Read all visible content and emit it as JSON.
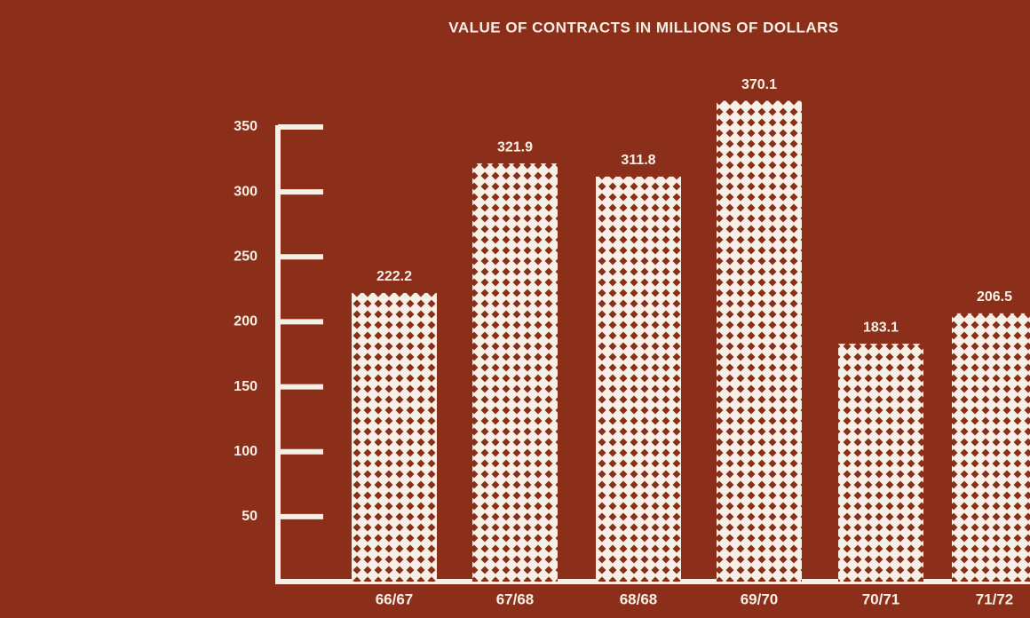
{
  "chart_data": {
    "type": "bar",
    "title": "VALUE OF CONTRACTS IN MILLIONS OF DOLLARS",
    "categories": [
      "66/67",
      "67/68",
      "68/68",
      "69/70",
      "70/71",
      "71/72"
    ],
    "values": [
      222.2,
      321.9,
      311.8,
      370.1,
      183.1,
      206.5
    ],
    "color": "#f6efe6",
    "ylim": [
      0,
      350
    ],
    "yticks": [
      50,
      100,
      150,
      200,
      250,
      300,
      350
    ]
  }
}
